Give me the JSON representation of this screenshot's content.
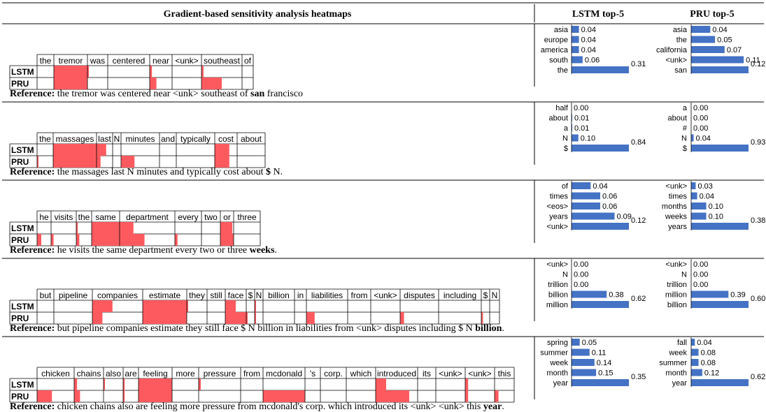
{
  "header": {
    "col1": "Gradient-based sensitivity analysis heatmaps",
    "col2": "LSTM top-5",
    "col3": "PRU top-5"
  },
  "row_labels": [
    "LSTM",
    "PRU"
  ],
  "reference_label": "Reference:",
  "colors": {
    "heat": "#fd5a5f",
    "bar": "#4472c4",
    "grid": "#000000"
  },
  "examples": [
    {
      "tokens": [
        "the",
        "tremor",
        "was",
        "centered",
        "near",
        "<unk>",
        "southeast",
        "of"
      ],
      "lstm": [
        0.0,
        1.0,
        0.05,
        0.0,
        0.1,
        0.0,
        0.05,
        0.0
      ],
      "pru": [
        0.0,
        1.0,
        0.0,
        0.0,
        0.3,
        0.0,
        0.5,
        0.0
      ],
      "reference_pre": "the tremor was centered near <unk> southeast of",
      "reference_bold": "san",
      "reference_post": "francisco",
      "lstm_top5": {
        "words": [
          "asia",
          "europe",
          "america",
          "south",
          "the"
        ],
        "values": [
          0.04,
          0.04,
          0.04,
          0.06,
          0.31
        ]
      },
      "pru_top5": {
        "words": [
          "asia",
          "the",
          "california",
          "<unk>",
          "san"
        ],
        "values": [
          0.04,
          0.05,
          0.07,
          0.11,
          0.12
        ]
      }
    },
    {
      "tokens": [
        "the",
        "massages",
        "last",
        "N",
        "minutes",
        "and",
        "typically",
        "cost",
        "about"
      ],
      "lstm": [
        0.0,
        1.0,
        0.6,
        0.0,
        0.0,
        0.0,
        0.0,
        0.65,
        0.0
      ],
      "pru": [
        0.05,
        1.0,
        0.25,
        0.0,
        0.35,
        0.0,
        0.0,
        0.65,
        0.0
      ],
      "reference_pre": "the massages last N minutes and typically cost about",
      "reference_bold": "$",
      "reference_post": "N.",
      "lstm_top5": {
        "words": [
          "half",
          "about",
          "a",
          "N",
          "$"
        ],
        "values": [
          0.0,
          0.01,
          0.01,
          0.1,
          0.84
        ]
      },
      "pru_top5": {
        "words": [
          "a",
          "about",
          "#",
          "N",
          "$"
        ],
        "values": [
          0.0,
          0.0,
          0.0,
          0.04,
          0.93
        ]
      }
    },
    {
      "tokens": [
        "he",
        "visits",
        "the",
        "same",
        "department",
        "every",
        "two",
        "or",
        "three"
      ],
      "lstm": [
        0.0,
        0.0,
        0.1,
        1.0,
        0.25,
        0.0,
        0.0,
        0.9,
        0.0
      ],
      "pru": [
        0.3,
        0.1,
        0.2,
        1.0,
        0.45,
        0.1,
        0.0,
        1.0,
        0.0
      ],
      "reference_pre": "he visits the same department every two or three",
      "reference_bold": "weeks",
      "reference_post": ".",
      "lstm_top5": {
        "words": [
          "of",
          "times",
          "<eos>",
          "years",
          "<unk>"
        ],
        "values": [
          0.04,
          0.06,
          0.06,
          0.09,
          0.12
        ]
      },
      "pru_top5": {
        "words": [
          "<unk>",
          "times",
          "months",
          "weeks",
          "years"
        ],
        "values": [
          0.03,
          0.04,
          0.1,
          0.1,
          0.38
        ]
      }
    },
    {
      "tokens": [
        "but",
        "pipeline",
        "companies",
        "estimate",
        "they",
        "still",
        "face",
        "$",
        "N",
        "billion",
        "in",
        "liabilities",
        "from",
        "<unk>",
        "disputes",
        "including",
        "$",
        "N"
      ],
      "lstm": [
        0.0,
        0.0,
        0.4,
        1.0,
        0.05,
        0.0,
        0.5,
        0.0,
        0.1,
        0.0,
        0.0,
        0.0,
        0.0,
        0.0,
        0.0,
        0.0,
        0.0,
        0.0
      ],
      "pru": [
        0.0,
        0.0,
        0.2,
        1.0,
        0.0,
        0.0,
        1.0,
        0.05,
        0.15,
        0.0,
        0.0,
        0.2,
        0.0,
        0.0,
        0.1,
        0.0,
        0.2,
        0.0
      ],
      "reference_pre": "but pipeline companies estimate they still face $ N billion in liabilities from <unk> disputes including $ N",
      "reference_bold": "billion",
      "reference_post": ".",
      "lstm_top5": {
        "words": [
          "<unk>",
          "N",
          "trillion",
          "billion",
          "million"
        ],
        "values": [
          0.0,
          0.0,
          0.0,
          0.38,
          0.62
        ]
      },
      "pru_top5": {
        "words": [
          "<unk>",
          "N",
          "trillion",
          "million",
          "billion"
        ],
        "values": [
          0.0,
          0.0,
          0.0,
          0.39,
          0.6
        ]
      }
    },
    {
      "tokens": [
        "chicken",
        "chains",
        "also",
        "are",
        "feeling",
        "more",
        "pressure",
        "from",
        "mcdonald",
        "'s",
        "corp.",
        "which",
        "introduced",
        "its",
        "<unk>",
        "<unk>",
        "this"
      ],
      "lstm": [
        0.0,
        0.1,
        0.05,
        0.1,
        1.0,
        0.0,
        0.05,
        0.0,
        0.0,
        0.0,
        0.0,
        0.0,
        0.25,
        0.0,
        0.0,
        0.1,
        0.0
      ],
      "pru": [
        0.4,
        0.2,
        0.0,
        0.1,
        1.0,
        0.0,
        0.0,
        0.0,
        1.0,
        0.0,
        0.0,
        0.0,
        0.8,
        0.0,
        0.0,
        0.1,
        0.2
      ],
      "reference_pre": "chicken chains also are feeling more pressure from mcdonald's corp. which introduced its <unk> <unk> this",
      "reference_bold": "year",
      "reference_post": ".",
      "lstm_top5": {
        "words": [
          "spring",
          "summer",
          "week",
          "month",
          "year"
        ],
        "values": [
          0.05,
          0.11,
          0.14,
          0.15,
          0.35
        ]
      },
      "pru_top5": {
        "words": [
          "fall",
          "week",
          "summer",
          "month",
          "year"
        ],
        "values": [
          0.04,
          0.08,
          0.08,
          0.12,
          0.62
        ]
      }
    }
  ]
}
